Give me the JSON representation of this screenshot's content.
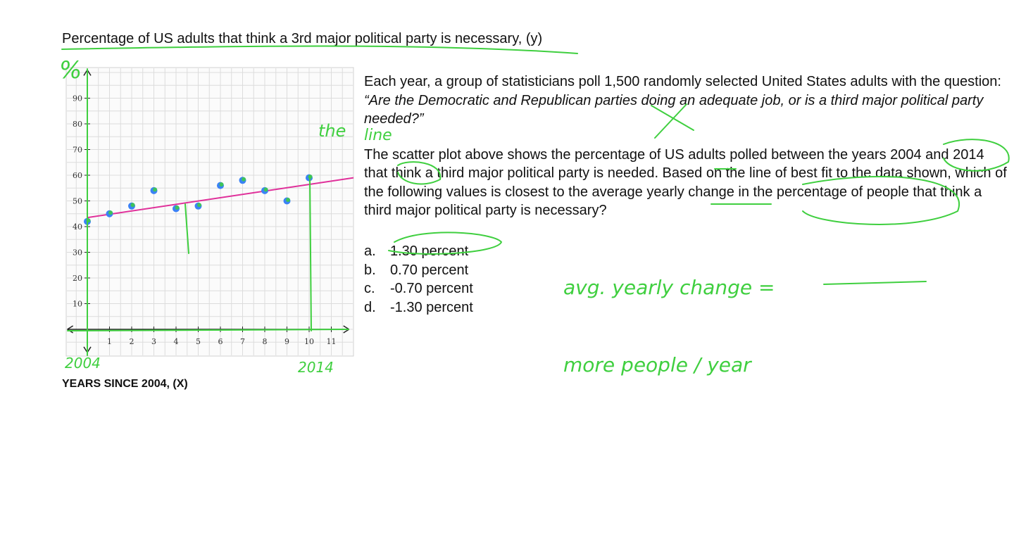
{
  "chart_data": {
    "type": "scatter",
    "ylabel": "Percentage of US adults that think a 3rd major political party is necessary, (y)",
    "xlabel": "YEARS SINCE 2004, (X)",
    "xlim": [
      0,
      12
    ],
    "ylim": [
      0,
      100
    ],
    "x_ticks": [
      1,
      2,
      3,
      4,
      5,
      6,
      7,
      8,
      9,
      10,
      11
    ],
    "y_ticks": [
      10,
      20,
      30,
      40,
      50,
      60,
      70,
      80,
      90
    ],
    "grid": true,
    "points": [
      {
        "x": 0,
        "y": 42
      },
      {
        "x": 1,
        "y": 45
      },
      {
        "x": 2,
        "y": 48
      },
      {
        "x": 3,
        "y": 54
      },
      {
        "x": 4,
        "y": 47
      },
      {
        "x": 5,
        "y": 48
      },
      {
        "x": 6,
        "y": 56
      },
      {
        "x": 7,
        "y": 58
      },
      {
        "x": 8,
        "y": 54
      },
      {
        "x": 9,
        "y": 50
      },
      {
        "x": 10,
        "y": 59
      }
    ],
    "best_fit_line": {
      "x": [
        0,
        12
      ],
      "y": [
        43.5,
        59
      ]
    },
    "point_color": "#3b82f6",
    "line_color": "#e0309a"
  },
  "question": {
    "intro_plain": "Each year, a group of statisticians poll 1,500 randomly selected United States adults with the question: ",
    "intro_italic": "“Are the Democratic and Republican parties doing an adequate job, or is a third major political party needed?”",
    "body": "The scatter plot above shows the percentage of US adults polled between the years 2004 and 2014 that think a third major political party is needed. Based on the line of best fit to the data shown, which of the following values is closest to the average yearly change in the percentage of people that think a third major political party is necessary?"
  },
  "choices": [
    {
      "letter": "a.",
      "text": "1.30 percent"
    },
    {
      "letter": "b.",
      "text": "0.70 percent"
    },
    {
      "letter": "c.",
      "text": "-0.70 percent"
    },
    {
      "letter": "d.",
      "text": "-1.30 percent"
    }
  ],
  "annotations": {
    "y_unit": "%",
    "start_year": "2004",
    "end_year": "2014",
    "the_line_1": "the",
    "the_line_2": "line",
    "avg_change": "avg. yearly change =",
    "more_people": "more people / year",
    "ink_color": "#3fcf3f"
  }
}
